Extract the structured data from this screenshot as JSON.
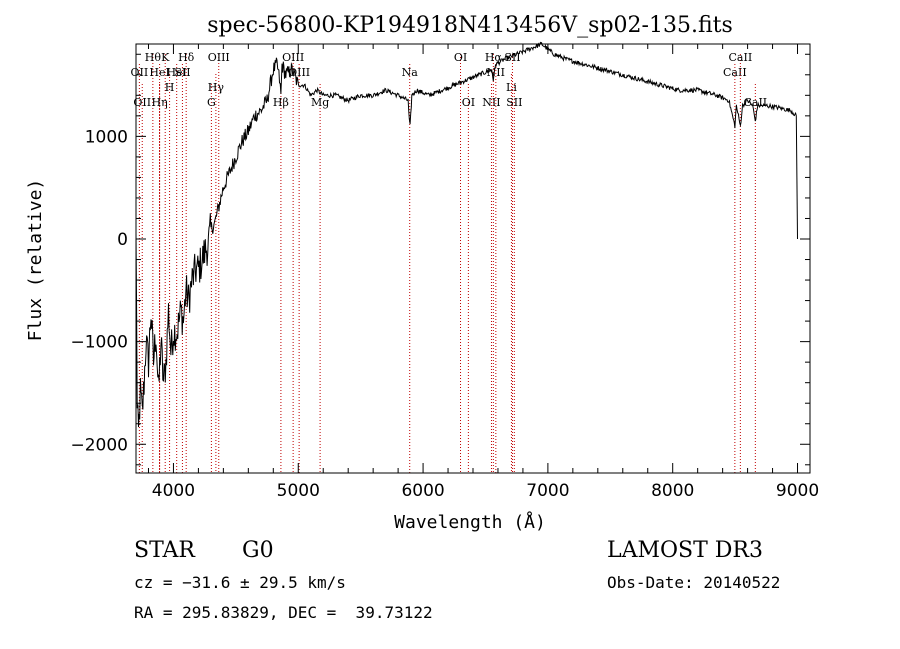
{
  "chart_data": {
    "type": "line",
    "title": "spec-56800-KP194918N413456V_sp02-135.fits",
    "xlabel": "Wavelength (Å)",
    "ylabel": "Flux (relative)",
    "xlim": [
      3700,
      9100
    ],
    "ylim": [
      -2280,
      1900
    ],
    "xticks": [
      4000,
      5000,
      6000,
      7000,
      8000,
      9000
    ],
    "xtick_labels": [
      "4000",
      "5000",
      "6000",
      "7000",
      "8000",
      "9000"
    ],
    "yticks": [
      -2000,
      -1000,
      0,
      1000
    ],
    "ytick_labels": [
      "−2000",
      "−1000",
      "0",
      "1000"
    ],
    "series": [
      {
        "name": "flux",
        "x": [
          3700,
          3705,
          3710,
          3720,
          3735,
          3750,
          3765,
          3780,
          3800,
          3820,
          3840,
          3860,
          3880,
          3900,
          3920,
          3940,
          3960,
          3980,
          4000,
          4030,
          4060,
          4080,
          4100,
          4120,
          4150,
          4180,
          4200,
          4230,
          4260,
          4280,
          4300,
          4330,
          4360,
          4400,
          4450,
          4500,
          4550,
          4600,
          4650,
          4700,
          4750,
          4800,
          4830,
          4850,
          4861,
          4870,
          4900,
          4950,
          5000,
          5050,
          5100,
          5150,
          5200,
          5300,
          5400,
          5500,
          5600,
          5700,
          5800,
          5880,
          5890,
          5896,
          5910,
          5950,
          6050,
          6150,
          6250,
          6350,
          6450,
          6550,
          6563,
          6580,
          6650,
          6750,
          6850,
          6950,
          7000,
          7050,
          7150,
          7300,
          7450,
          7600,
          7750,
          7900,
          8050,
          8200,
          8350,
          8450,
          8498,
          8510,
          8542,
          8560,
          8600,
          8640,
          8662,
          8680,
          8750,
          8850,
          8950,
          8990,
          9000
        ],
        "y": [
          0,
          -600,
          -1700,
          -1900,
          -1500,
          -1700,
          -1400,
          -1000,
          -1200,
          -700,
          -1200,
          -900,
          -1500,
          -1000,
          -1400,
          -1200,
          -700,
          -1100,
          -900,
          -900,
          -700,
          -800,
          -500,
          -600,
          -400,
          -300,
          -300,
          -200,
          -100,
          -50,
          100,
          150,
          300,
          500,
          650,
          800,
          950,
          1050,
          1200,
          1250,
          1350,
          1650,
          1700,
          1550,
          1400,
          1700,
          1600,
          1650,
          1500,
          1500,
          1400,
          1450,
          1400,
          1400,
          1350,
          1400,
          1400,
          1450,
          1400,
          1350,
          1150,
          1100,
          1400,
          1450,
          1400,
          1450,
          1500,
          1550,
          1600,
          1650,
          1550,
          1700,
          1750,
          1800,
          1850,
          1900,
          1850,
          1800,
          1750,
          1700,
          1650,
          1600,
          1550,
          1500,
          1450,
          1450,
          1400,
          1350,
          1100,
          1300,
          1100,
          1300,
          1350,
          1300,
          1150,
          1300,
          1300,
          1280,
          1250,
          1200,
          0
        ]
      }
    ],
    "line_markers": [
      {
        "wl": 3727,
        "label": "OII",
        "row": 1
      },
      {
        "wl": 3750,
        "label": "OII",
        "row": 3
      },
      {
        "wl": 3835,
        "label": "Hθ",
        "row": 0
      },
      {
        "wl": 3889,
        "label": "HeI",
        "row": 1
      },
      {
        "wl": 3889,
        "label": "Hη",
        "row": 3
      },
      {
        "wl": 3934,
        "label": "K",
        "row": 0
      },
      {
        "wl": 3969,
        "label": "H",
        "row": 2
      },
      {
        "wl": 4026,
        "label": "HeI",
        "row": 1
      },
      {
        "wl": 4072,
        "label": "SII",
        "row": 1
      },
      {
        "wl": 4102,
        "label": "Hδ",
        "row": 0
      },
      {
        "wl": 4340,
        "label": "Hγ",
        "row": 2
      },
      {
        "wl": 4363,
        "label": "OIII",
        "row": 0
      },
      {
        "wl": 4304,
        "label": "G",
        "row": 3
      },
      {
        "wl": 4861,
        "label": "Hβ",
        "row": 3
      },
      {
        "wl": 4959,
        "label": "OIII",
        "row": 0
      },
      {
        "wl": 5007,
        "label": "OIII",
        "row": 1
      },
      {
        "wl": 5175,
        "label": "Mg",
        "row": 3
      },
      {
        "wl": 5893,
        "label": "Na",
        "row": 1
      },
      {
        "wl": 6300,
        "label": "OI",
        "row": 0
      },
      {
        "wl": 6363,
        "label": "OI",
        "row": 3
      },
      {
        "wl": 6548,
        "label": "NII",
        "row": 3
      },
      {
        "wl": 6563,
        "label": "Hα",
        "row": 0
      },
      {
        "wl": 6583,
        "label": "NII",
        "row": 1
      },
      {
        "wl": 6708,
        "label": "Li",
        "row": 2
      },
      {
        "wl": 6716,
        "label": "SII",
        "row": 0
      },
      {
        "wl": 6731,
        "label": "SII",
        "row": 3
      },
      {
        "wl": 8498,
        "label": "CaII",
        "row": 1
      },
      {
        "wl": 8542,
        "label": "CaII",
        "row": 0
      },
      {
        "wl": 8662,
        "label": "CaII",
        "row": 3
      }
    ]
  },
  "info": {
    "class_label": "STAR",
    "subclass": "G0",
    "survey": "LAMOST DR3",
    "redshift": "cz = −31.6 ± 29.5 km/s",
    "obs_date": "Obs-Date: 20140522",
    "coords": "RA = 295.83829, DEC =  39.73122"
  }
}
